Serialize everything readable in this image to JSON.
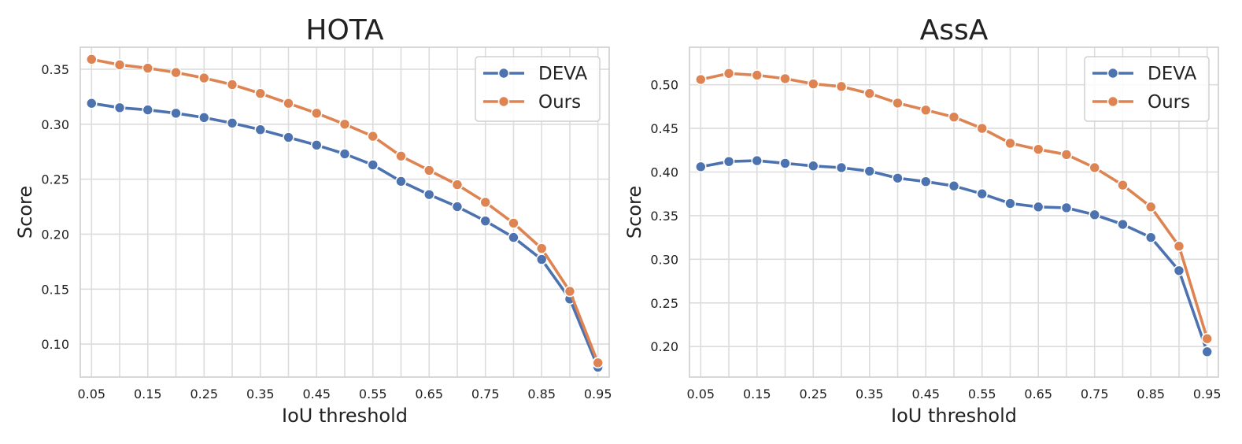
{
  "chart_data": [
    {
      "type": "line",
      "title": "HOTA",
      "xlabel": "IoU threshold",
      "ylabel": "Score",
      "x": [
        0.05,
        0.1,
        0.15,
        0.2,
        0.25,
        0.3,
        0.35,
        0.4,
        0.45,
        0.5,
        0.55,
        0.6,
        0.65,
        0.7,
        0.75,
        0.8,
        0.85,
        0.9,
        0.95
      ],
      "xticks": [
        "0.05",
        "0.15",
        "0.25",
        "0.35",
        "0.45",
        "0.55",
        "0.65",
        "0.75",
        "0.85",
        "0.95"
      ],
      "yticks": [
        "0.10",
        "0.15",
        "0.20",
        "0.25",
        "0.30",
        "0.35"
      ],
      "ylim": [
        0.07,
        0.37
      ],
      "grid": true,
      "legend": "top-right",
      "series": [
        {
          "name": "DEVA",
          "color": "#4c72b0",
          "values": [
            0.319,
            0.315,
            0.313,
            0.31,
            0.306,
            0.301,
            0.295,
            0.288,
            0.281,
            0.273,
            0.263,
            0.248,
            0.236,
            0.225,
            0.212,
            0.197,
            0.177,
            0.141,
            0.079
          ]
        },
        {
          "name": "Ours",
          "color": "#dd8452",
          "values": [
            0.359,
            0.354,
            0.351,
            0.347,
            0.342,
            0.336,
            0.328,
            0.319,
            0.31,
            0.3,
            0.289,
            0.271,
            0.258,
            0.245,
            0.229,
            0.21,
            0.187,
            0.148,
            0.083
          ]
        }
      ]
    },
    {
      "type": "line",
      "title": "AssA",
      "xlabel": "IoU threshold",
      "ylabel": "Score",
      "x": [
        0.05,
        0.1,
        0.15,
        0.2,
        0.25,
        0.3,
        0.35,
        0.4,
        0.45,
        0.5,
        0.55,
        0.6,
        0.65,
        0.7,
        0.75,
        0.8,
        0.85,
        0.9,
        0.95
      ],
      "xticks": [
        "0.05",
        "0.15",
        "0.25",
        "0.35",
        "0.45",
        "0.55",
        "0.65",
        "0.75",
        "0.85",
        "0.95"
      ],
      "yticks": [
        "0.20",
        "0.25",
        "0.30",
        "0.35",
        "0.40",
        "0.45",
        "0.50"
      ],
      "ylim": [
        0.165,
        0.543
      ],
      "grid": true,
      "legend": "top-right",
      "series": [
        {
          "name": "DEVA",
          "color": "#4c72b0",
          "values": [
            0.406,
            0.412,
            0.413,
            0.41,
            0.407,
            0.405,
            0.401,
            0.393,
            0.389,
            0.384,
            0.375,
            0.364,
            0.36,
            0.359,
            0.351,
            0.34,
            0.325,
            0.287,
            0.194
          ]
        },
        {
          "name": "Ours",
          "color": "#dd8452",
          "values": [
            0.506,
            0.513,
            0.511,
            0.507,
            0.501,
            0.498,
            0.49,
            0.479,
            0.471,
            0.463,
            0.45,
            0.433,
            0.426,
            0.42,
            0.405,
            0.385,
            0.36,
            0.315,
            0.209
          ]
        }
      ]
    }
  ]
}
